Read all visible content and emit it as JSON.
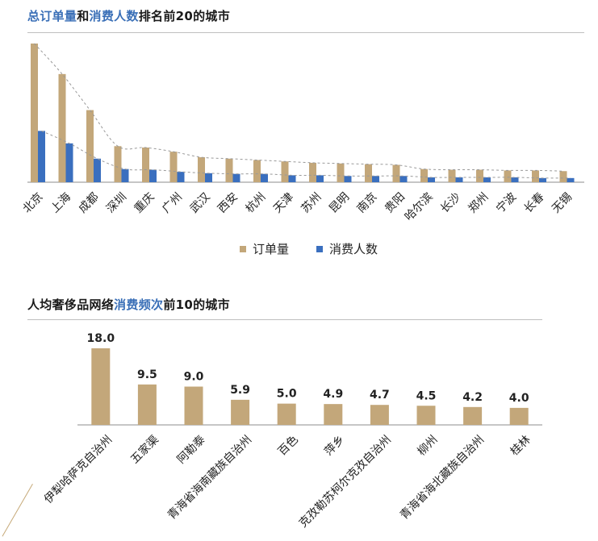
{
  "chart1": {
    "title_parts": [
      "总订单量",
      "和",
      "消费人数",
      "排名前20的城市"
    ],
    "legend": [
      "订单量",
      "消费人数"
    ]
  },
  "chart2": {
    "title_parts": [
      "人均奢侈品网络",
      "消费频次",
      "前10的城市"
    ]
  },
  "colors": {
    "orders": "#c3a77a",
    "consumers": "#3a6fbf",
    "bar2": "#c3a77a",
    "highlight": "#3a6fb7",
    "trend": "#999999"
  },
  "chart_data": [
    {
      "type": "bar",
      "title": "总订单量和消费人数排名前20的城市",
      "categories": [
        "北京",
        "上海",
        "成都",
        "深圳",
        "重庆",
        "广州",
        "武汉",
        "西安",
        "杭州",
        "天津",
        "苏州",
        "昆明",
        "南京",
        "贵阳",
        "哈尔滨",
        "长沙",
        "郑州",
        "宁波",
        "长春",
        "无锡"
      ],
      "series": [
        {
          "name": "订单量",
          "values": [
            100,
            78,
            52,
            26,
            25,
            22,
            18,
            17,
            16,
            15,
            14,
            13.5,
            13,
            12.5,
            9.5,
            9,
            9,
            8.5,
            8.5,
            8
          ]
        },
        {
          "name": "消费人数",
          "values": [
            37,
            28,
            17,
            9.5,
            9,
            7.5,
            6.5,
            6,
            6,
            5,
            5,
            4.5,
            4.5,
            4.5,
            3.5,
            3.5,
            3.5,
            3.5,
            3,
            3
          ]
        }
      ],
      "ylim": [
        0,
        100
      ],
      "grid": false,
      "legend_position": "bottom",
      "trend_lines": true
    },
    {
      "type": "bar",
      "title": "人均奢侈品网络消费频次前10的城市",
      "categories": [
        "伊犁哈萨克自治州",
        "五家渠",
        "阿勒泰",
        "青海省海南藏族自治州",
        "百色",
        "萍乡",
        "克孜勒苏柯尔克孜自治州",
        "柳州",
        "青海省海北藏族自治州",
        "桂林"
      ],
      "values": [
        18.0,
        9.5,
        9.0,
        5.9,
        5.0,
        4.9,
        4.7,
        4.5,
        4.2,
        4.0
      ],
      "value_labels": [
        "18.0",
        "9.5",
        "9.0",
        "5.9",
        "5.0",
        "4.9",
        "4.7",
        "4.5",
        "4.2",
        "4.0"
      ],
      "ylim": [
        0,
        18
      ],
      "grid": false
    }
  ]
}
